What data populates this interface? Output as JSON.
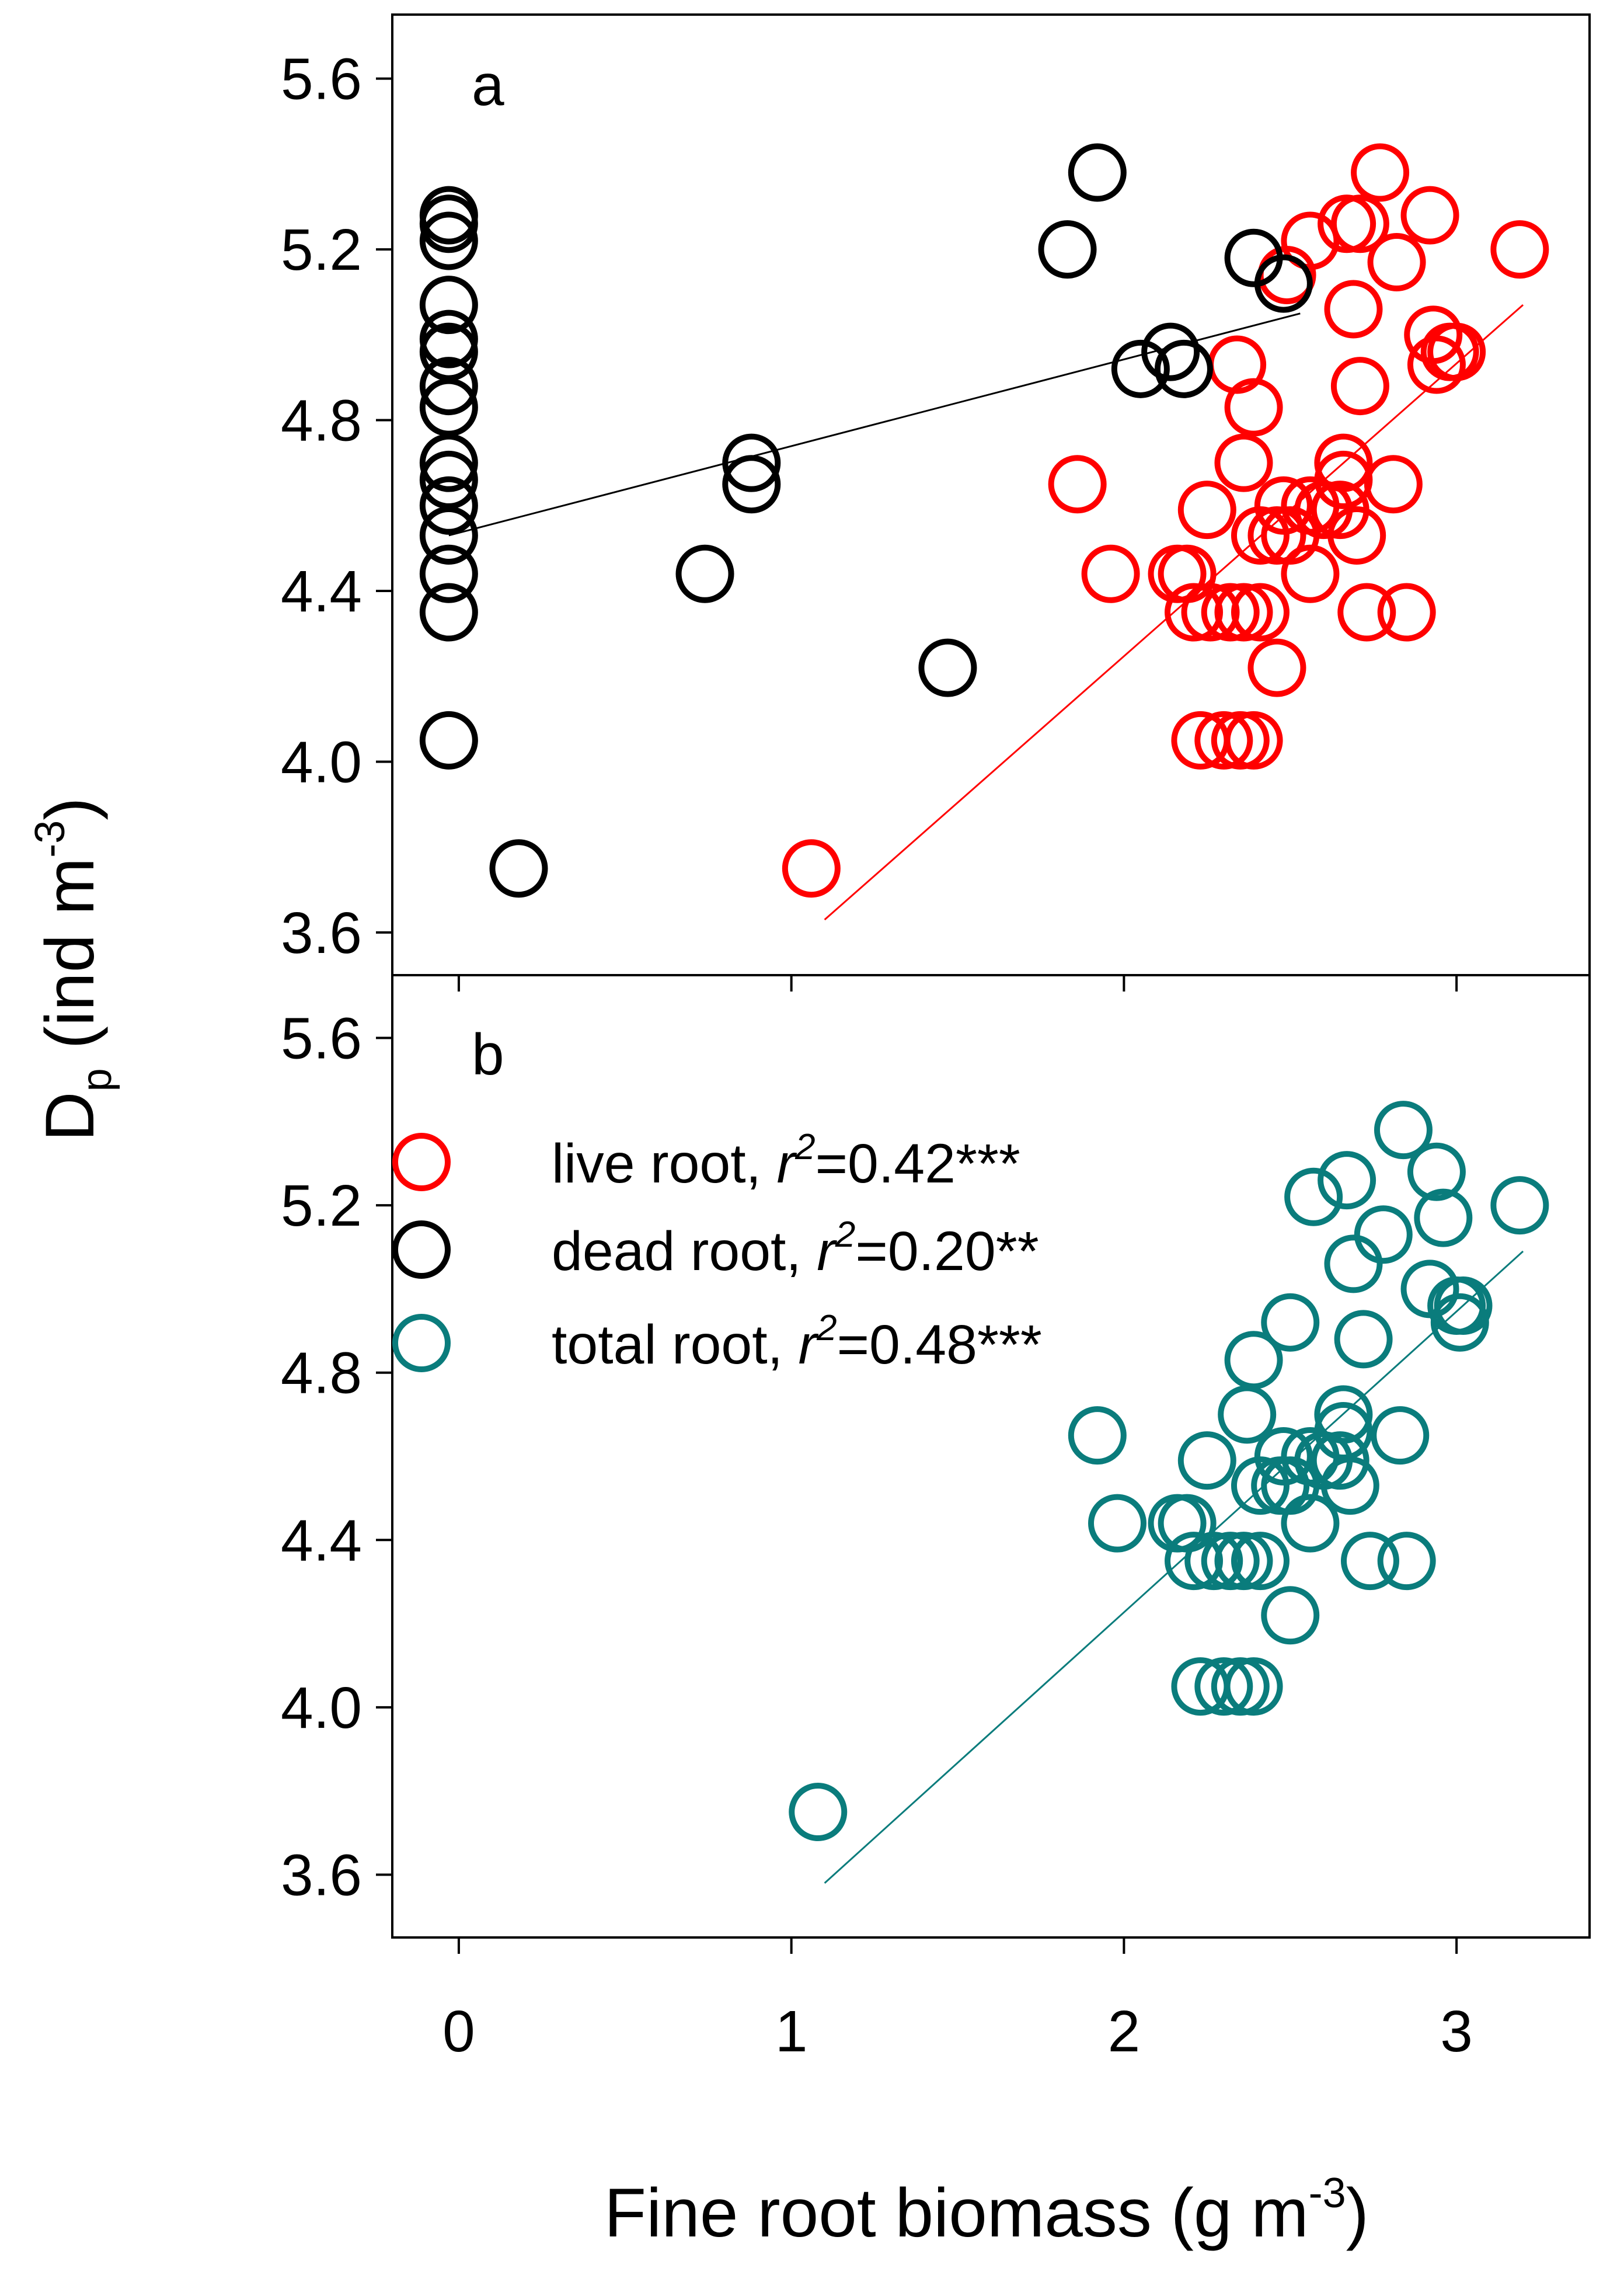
{
  "figure": {
    "x_axis_title": {
      "main": "Fine root biomass (g m",
      "sup": "-3",
      "tail": ")"
    },
    "y_axis_title": {
      "main": "D",
      "sub": "p",
      "rest": " (ind m",
      "sup": "-3",
      "tail": ")"
    },
    "x_tick_labels": [
      "0",
      "1",
      "2",
      "3"
    ],
    "y_tick_labels": [
      "3.6",
      "4.0",
      "4.4",
      "4.8",
      "5.2",
      "5.6"
    ],
    "colors": {
      "live": "#ff0000",
      "dead": "#000000",
      "total": "#0a7c7c"
    }
  },
  "chart_data": [
    {
      "type": "scatter",
      "panel": "a",
      "panel_label": "a",
      "xlim": [
        -0.2,
        3.4
      ],
      "ylim": [
        3.5,
        5.75
      ],
      "xticks": [
        0,
        1,
        2,
        3
      ],
      "yticks": [
        3.6,
        4.0,
        4.4,
        4.8,
        5.2,
        5.6
      ],
      "series": [
        {
          "key": "live",
          "color": "#ff0000",
          "points": [
            [
              1.06,
              3.75
            ],
            [
              1.86,
              4.65
            ],
            [
              1.96,
              4.44
            ],
            [
              2.16,
              4.44
            ],
            [
              2.19,
              4.44
            ],
            [
              2.25,
              4.59
            ],
            [
              2.21,
              4.35
            ],
            [
              2.26,
              4.35
            ],
            [
              2.32,
              4.35
            ],
            [
              2.36,
              4.35
            ],
            [
              2.41,
              4.35
            ],
            [
              2.23,
              4.05
            ],
            [
              2.3,
              4.05
            ],
            [
              2.35,
              4.05
            ],
            [
              2.39,
              4.05
            ],
            [
              2.36,
              4.7
            ],
            [
              2.39,
              4.83
            ],
            [
              2.34,
              4.93
            ],
            [
              2.41,
              4.53
            ],
            [
              2.46,
              4.53
            ],
            [
              2.5,
              4.53
            ],
            [
              2.48,
              4.6
            ],
            [
              2.46,
              4.22
            ],
            [
              2.56,
              4.44
            ],
            [
              2.56,
              4.6
            ],
            [
              2.6,
              4.59
            ],
            [
              2.65,
              4.59
            ],
            [
              2.66,
              4.7
            ],
            [
              2.66,
              4.66
            ],
            [
              2.7,
              4.53
            ],
            [
              2.71,
              4.88
            ],
            [
              2.69,
              5.06
            ],
            [
              2.71,
              5.26
            ],
            [
              2.67,
              5.26
            ],
            [
              2.77,
              5.38
            ],
            [
              2.82,
              5.17
            ],
            [
              2.81,
              4.65
            ],
            [
              2.73,
              4.35
            ],
            [
              2.85,
              4.35
            ],
            [
              2.92,
              5.28
            ],
            [
              2.93,
              5.0
            ],
            [
              2.94,
              4.93
            ],
            [
              2.98,
              4.96
            ],
            [
              3.0,
              4.96
            ],
            [
              3.19,
              5.2
            ],
            [
              2.56,
              5.22
            ],
            [
              2.49,
              5.14
            ]
          ],
          "fit": {
            "x": [
              1.1,
              3.2
            ],
            "y": [
              3.63,
              5.07
            ]
          }
        },
        {
          "key": "dead",
          "color": "#000000",
          "points": [
            [
              -0.03,
              5.28
            ],
            [
              -0.03,
              5.26
            ],
            [
              -0.03,
              5.22
            ],
            [
              -0.03,
              5.07
            ],
            [
              -0.03,
              4.99
            ],
            [
              -0.03,
              4.96
            ],
            [
              -0.03,
              4.88
            ],
            [
              -0.03,
              4.83
            ],
            [
              -0.03,
              4.7
            ],
            [
              -0.03,
              4.66
            ],
            [
              -0.03,
              4.6
            ],
            [
              -0.03,
              4.53
            ],
            [
              -0.03,
              4.44
            ],
            [
              -0.03,
              4.35
            ],
            [
              -0.03,
              4.05
            ],
            [
              0.18,
              3.75
            ],
            [
              0.74,
              4.44
            ],
            [
              0.88,
              4.7
            ],
            [
              0.88,
              4.65
            ],
            [
              1.47,
              4.22
            ],
            [
              1.83,
              5.2
            ],
            [
              1.92,
              5.38
            ],
            [
              2.05,
              4.92
            ],
            [
              2.14,
              4.96
            ],
            [
              2.18,
              4.92
            ],
            [
              2.39,
              5.18
            ],
            [
              2.48,
              5.12
            ]
          ],
          "fit": {
            "x": [
              -0.03,
              2.53
            ],
            "y": [
              4.53,
              5.05
            ]
          }
        }
      ]
    },
    {
      "type": "scatter",
      "panel": "b",
      "panel_label": "b",
      "xlim": [
        -0.2,
        3.4
      ],
      "ylim": [
        3.45,
        5.75
      ],
      "xticks": [
        0,
        1,
        2,
        3
      ],
      "yticks": [
        3.6,
        4.0,
        4.4,
        4.8,
        5.2,
        5.6
      ],
      "legend": {
        "position": "top-left",
        "entries": [
          {
            "key": "live",
            "label": "live root, ",
            "stat_symbol": "r",
            "stat_sup": "2",
            "stat_value": "=0.42***"
          },
          {
            "key": "dead",
            "label": "dead root, ",
            "stat_symbol": "r",
            "stat_sup": "2",
            "stat_value": "=0.20**"
          },
          {
            "key": "total",
            "label": "total root, ",
            "stat_symbol": "r",
            "stat_sup": "2",
            "stat_value": "=0.48***"
          }
        ]
      },
      "series": [
        {
          "key": "total",
          "color": "#0a7c7c",
          "points": [
            [
              1.08,
              3.75
            ],
            [
              1.92,
              4.65
            ],
            [
              1.98,
              4.44
            ],
            [
              2.16,
              4.44
            ],
            [
              2.19,
              4.44
            ],
            [
              2.25,
              4.59
            ],
            [
              2.21,
              4.35
            ],
            [
              2.27,
              4.35
            ],
            [
              2.32,
              4.35
            ],
            [
              2.36,
              4.35
            ],
            [
              2.41,
              4.35
            ],
            [
              2.23,
              4.05
            ],
            [
              2.3,
              4.05
            ],
            [
              2.35,
              4.05
            ],
            [
              2.39,
              4.05
            ],
            [
              2.37,
              4.7
            ],
            [
              2.39,
              4.83
            ],
            [
              2.5,
              4.92
            ],
            [
              2.41,
              4.53
            ],
            [
              2.47,
              4.53
            ],
            [
              2.5,
              4.53
            ],
            [
              2.48,
              4.6
            ],
            [
              2.5,
              4.22
            ],
            [
              2.56,
              4.44
            ],
            [
              2.56,
              4.6
            ],
            [
              2.6,
              4.59
            ],
            [
              2.65,
              4.59
            ],
            [
              2.66,
              4.7
            ],
            [
              2.66,
              4.66
            ],
            [
              2.68,
              4.53
            ],
            [
              2.72,
              4.88
            ],
            [
              2.69,
              5.06
            ],
            [
              2.67,
              5.26
            ],
            [
              2.57,
              5.22
            ],
            [
              2.84,
              5.38
            ],
            [
              2.78,
              5.13
            ],
            [
              2.83,
              4.65
            ],
            [
              2.74,
              4.35
            ],
            [
              2.85,
              4.35
            ],
            [
              2.94,
              5.28
            ],
            [
              2.92,
              5.0
            ],
            [
              2.96,
              5.17
            ],
            [
              3.0,
              4.96
            ],
            [
              3.02,
              4.96
            ],
            [
              3.01,
              4.92
            ],
            [
              3.19,
              5.2
            ]
          ],
          "fit": {
            "x": [
              1.1,
              3.2
            ],
            "y": [
              3.58,
              5.09
            ]
          }
        }
      ]
    }
  ]
}
